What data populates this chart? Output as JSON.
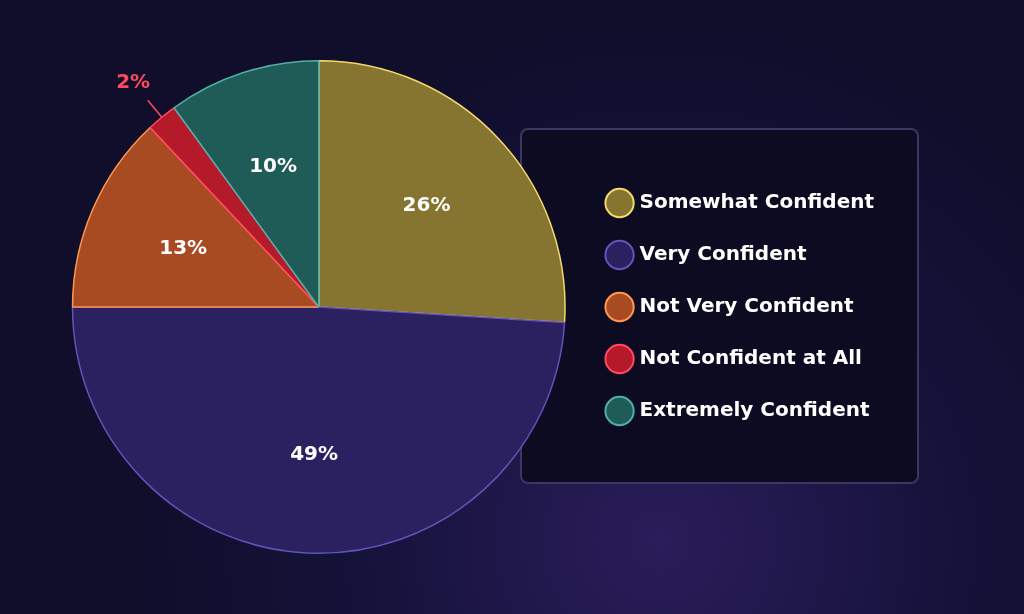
{
  "chart_data": {
    "type": "pie",
    "categories": [
      "Somewhat Confident",
      "Very Confident",
      "Not Very Confident",
      "Not Confident at All",
      "Extremely Confident"
    ],
    "values": [
      26,
      49,
      13,
      2,
      10
    ],
    "value_labels": [
      "26%",
      "49%",
      "13%",
      "2%",
      "10%"
    ],
    "colors": [
      "#857530",
      "#2b2160",
      "#a94b22",
      "#b51a2a",
      "#1f5b57"
    ],
    "legend": "right"
  }
}
